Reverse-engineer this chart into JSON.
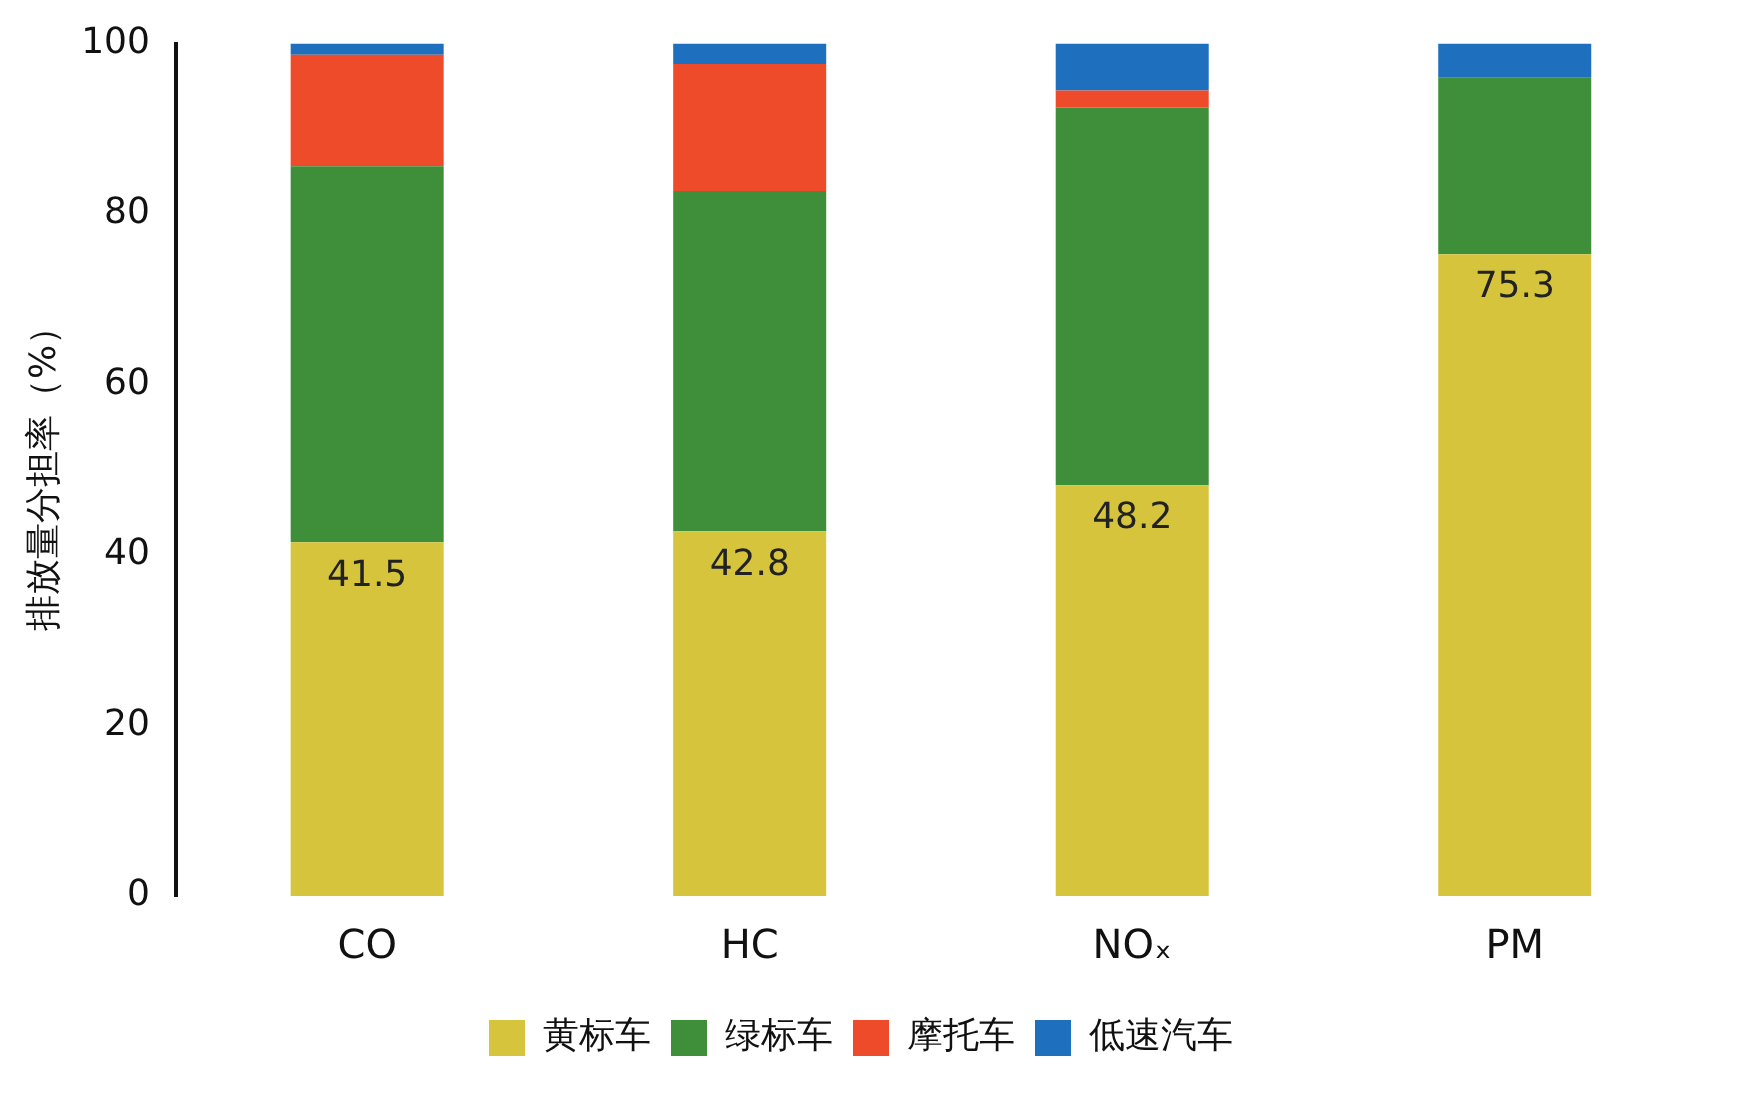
{
  "chart_data": {
    "type": "bar",
    "stacked": true,
    "ylabel": "排放量分担率（%）",
    "categories": [
      "CO",
      "HC",
      "NOₓ",
      "PM"
    ],
    "ylim": [
      0,
      100
    ],
    "yticks": [
      0,
      20,
      40,
      60,
      80,
      100
    ],
    "grid": false,
    "legend": "bottom",
    "series": [
      {
        "name": "黄标车",
        "color": "#d6c53c",
        "values": [
          41.5,
          42.8,
          48.2,
          75.3
        ],
        "value_labels": [
          "41.5",
          "42.8",
          "48.2",
          "75.3"
        ]
      },
      {
        "name": "绿标车",
        "color": "#3f8f3a",
        "values": [
          44.1,
          39.9,
          44.3,
          20.7
        ]
      },
      {
        "name": "摩托车",
        "color": "#ee4b2b",
        "values": [
          13.1,
          14.9,
          2.0,
          0
        ]
      },
      {
        "name": "低速汽车",
        "color": "#1f6fbf",
        "values": [
          1.3,
          2.4,
          5.5,
          4.0
        ]
      }
    ]
  }
}
